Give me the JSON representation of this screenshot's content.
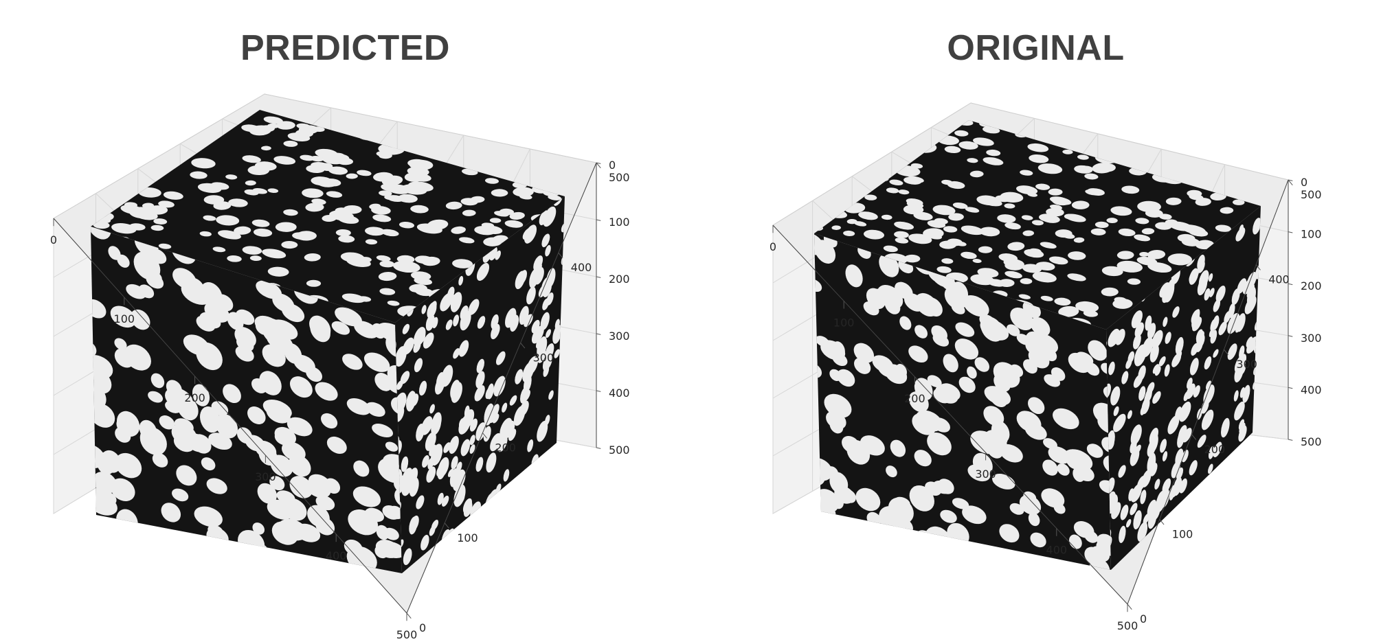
{
  "chart_data": [
    {
      "type": "3d-voxel",
      "title": "PREDICTED",
      "x_ticks": [
        "0",
        "100",
        "200",
        "300",
        "400",
        "500"
      ],
      "y_ticks": [
        "0",
        "100",
        "200",
        "300",
        "400",
        "500"
      ],
      "z_ticks": [
        "0",
        "100",
        "200",
        "300",
        "400",
        "500"
      ],
      "xlim": [
        0,
        500
      ],
      "ylim": [
        0,
        500
      ],
      "zlim": [
        0,
        500
      ],
      "grid": true,
      "colors": {
        "pore": "#141414",
        "grain": "#ececec",
        "pane": "#f2f2f2",
        "grid": "#d6d6d6"
      }
    },
    {
      "type": "3d-voxel",
      "title": "ORIGINAL",
      "x_ticks": [
        "0",
        "100",
        "200",
        "300",
        "400",
        "500"
      ],
      "y_ticks": [
        "0",
        "100",
        "200",
        "300",
        "400",
        "500"
      ],
      "z_ticks": [
        "0",
        "100",
        "200",
        "300",
        "400",
        "500"
      ],
      "xlim": [
        0,
        500
      ],
      "ylim": [
        0,
        500
      ],
      "zlim": [
        0,
        500
      ],
      "grid": true,
      "colors": {
        "pore": "#141414",
        "grain": "#ececec",
        "pane": "#f2f2f2",
        "grid": "#d6d6d6"
      }
    }
  ]
}
